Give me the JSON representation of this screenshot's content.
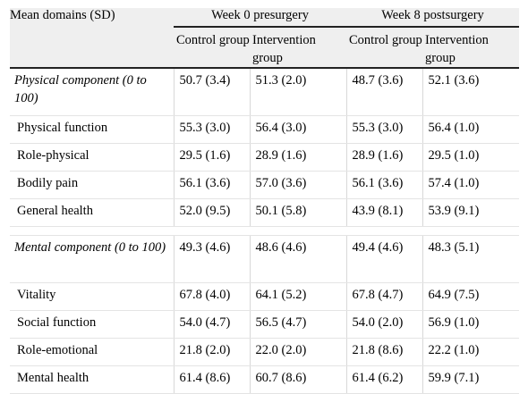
{
  "header": {
    "row_label": "Mean domains (SD)",
    "groups": [
      "Week 0 presurgery",
      "Week 8 postsurgery"
    ],
    "subcols": [
      "Control group",
      "Intervention group",
      "Control group",
      "Intervention group"
    ]
  },
  "rows": [
    {
      "label": "Physical component (0 to 100)",
      "values": [
        "50.7 (3.4)",
        "51.3 (2.0)",
        "48.7 (3.6)",
        "52.1 (3.6)"
      ]
    },
    {
      "label": "Physical function",
      "values": [
        "55.3 (3.0)",
        "56.4 (3.0)",
        "55.3 (3.0)",
        "56.4 (1.0)"
      ]
    },
    {
      "label": "Role-physical",
      "values": [
        "29.5 (1.6)",
        "28.9 (1.6)",
        "28.9 (1.6)",
        "29.5 (1.0)"
      ]
    },
    {
      "label": "Bodily pain",
      "values": [
        "56.1 (3.6)",
        "57.0 (3.6)",
        "56.1 (3.6)",
        "57.4 (1.0)"
      ]
    },
    {
      "label": "General health",
      "values": [
        "52.0 (9.5)",
        "50.1 (5.8)",
        "43.9 (8.1)",
        "53.9 (9.1)"
      ]
    },
    {
      "label": "Mental component (0 to 100)",
      "values": [
        "49.3 (4.6)",
        "48.6 (4.6)",
        "49.4 (4.6)",
        "48.3 (5.1)"
      ]
    },
    {
      "label": "Vitality",
      "values": [
        "67.8 (4.0)",
        "64.1 (5.2)",
        "67.8 (4.7)",
        "64.9 (7.5)"
      ]
    },
    {
      "label": "Social function",
      "values": [
        "54.0 (4.7)",
        "56.5 (4.7)",
        "54.0 (2.0)",
        "56.9 (1.0)"
      ]
    },
    {
      "label": "Role-emotional",
      "values": [
        "21.8 (2.0)",
        "22.0 (2.0)",
        "21.8 (8.6)",
        "22.2 (1.0)"
      ]
    },
    {
      "label": "Mental health",
      "values": [
        "61.4 (8.6)",
        "60.7 (8.6)",
        "61.4 (6.2)",
        "59.9 (7.1)"
      ]
    }
  ]
}
